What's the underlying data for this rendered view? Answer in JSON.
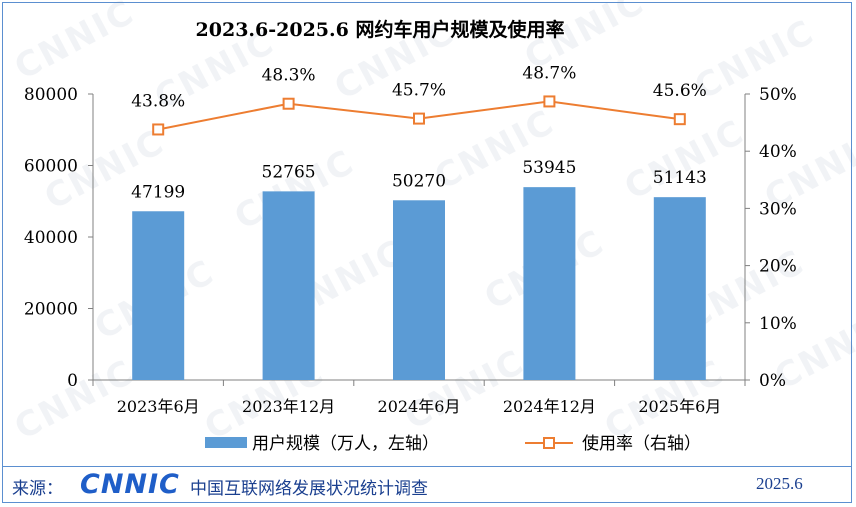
{
  "chart_data": {
    "type": "bar+line",
    "title": "2023.6-2025.6 网约车用户规模及使用率",
    "categories": [
      "2023年6月",
      "2023年12月",
      "2024年6月",
      "2024年12月",
      "2025年6月"
    ],
    "series": [
      {
        "name": "用户规模（万人，左轴）",
        "type": "bar",
        "axis": "left",
        "values": [
          47199,
          52765,
          50270,
          53945,
          51143
        ],
        "labels": [
          "47199",
          "52765",
          "50270",
          "53945",
          "51143"
        ],
        "color": "#5b9bd5"
      },
      {
        "name": "使用率（右轴）",
        "type": "line",
        "axis": "right",
        "values": [
          43.8,
          48.3,
          45.7,
          48.7,
          45.6
        ],
        "labels": [
          "43.8%",
          "48.3%",
          "45.7%",
          "48.7%",
          "45.6%"
        ],
        "color": "#ed7d31"
      }
    ],
    "y_left": {
      "min": 0,
      "max": 80000,
      "ticks": [
        "0",
        "20000",
        "40000",
        "60000",
        "80000"
      ]
    },
    "y_right": {
      "min": 0,
      "max": 50,
      "ticks": [
        "0%",
        "10%",
        "20%",
        "30%",
        "40%",
        "50%"
      ]
    },
    "legend": "bottom"
  },
  "footer": {
    "label": "来源：",
    "logo_text": "CNNIC",
    "org": "中国互联网络发展状况统计调查",
    "date": "2025.6"
  },
  "watermark": "CNNIC"
}
